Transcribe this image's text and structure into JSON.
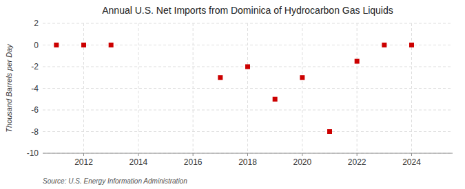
{
  "chart_data": {
    "type": "scatter",
    "title": "Annual U.S. Net Imports from Dominica of Hydrocarbon Gas Liquids",
    "y_label": "Thousand Barrels per Day",
    "annotations": [
      "Source: U.S. Energy Information Administration"
    ],
    "x": [
      2011,
      2012,
      2013,
      2017,
      2018,
      2019,
      2020,
      2021,
      2022,
      2023,
      2024
    ],
    "values": [
      0,
      0,
      0,
      -3,
      -2,
      -5,
      -3,
      -8,
      -1.5,
      0,
      0
    ],
    "color": "#cc0000",
    "marker": "square",
    "xlim": [
      2010.5,
      2025.5
    ],
    "xticks": [
      2012,
      2014,
      2016,
      2018,
      2020,
      2022,
      2024
    ],
    "ylim": [
      -10,
      2
    ],
    "yticks": [
      -10,
      -8,
      -6,
      -4,
      -2,
      0,
      2
    ],
    "grid": true
  }
}
